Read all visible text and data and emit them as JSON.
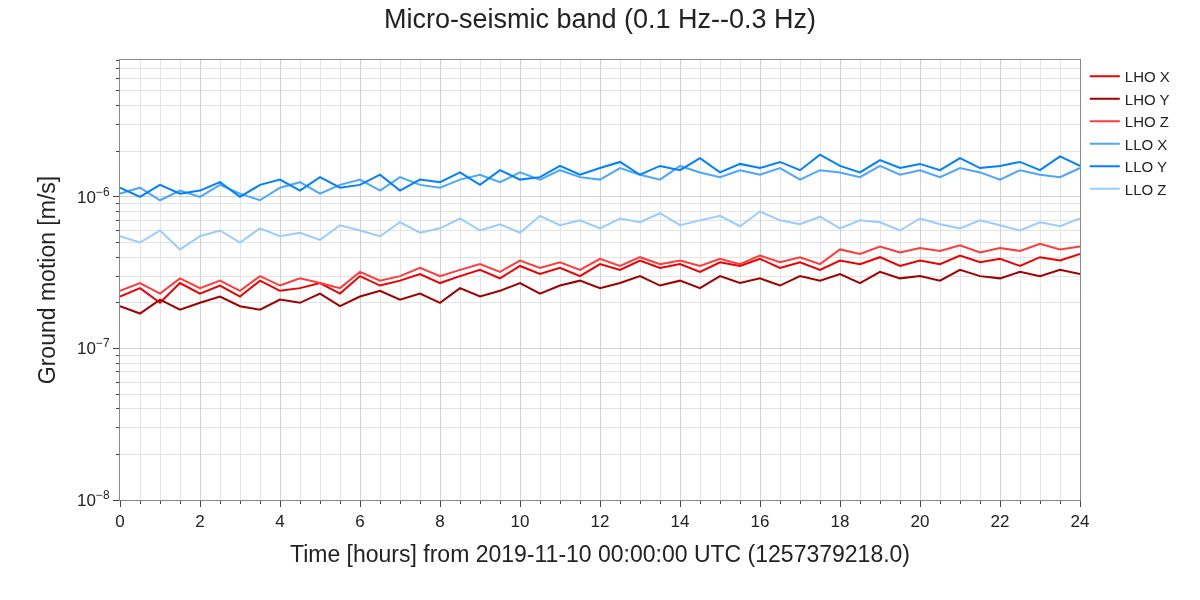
{
  "chart_data": {
    "type": "line",
    "title": "Micro-seismic band (0.1 Hz--0.3 Hz)",
    "xlabel": "Time [hours] from 2019-11-10 00:00:00 UTC (1257379218.0)",
    "ylabel": "Ground motion [m/s]",
    "x": [
      0,
      0.5,
      1,
      1.5,
      2,
      2.5,
      3,
      3.5,
      4,
      4.5,
      5,
      5.5,
      6,
      6.5,
      7,
      7.5,
      8,
      8.5,
      9,
      9.5,
      10,
      10.5,
      11,
      11.5,
      12,
      12.5,
      13,
      13.5,
      14,
      14.5,
      15,
      15.5,
      16,
      16.5,
      17,
      17.5,
      18,
      18.5,
      19,
      19.5,
      20,
      20.5,
      21,
      21.5,
      22,
      22.5,
      23,
      23.5,
      24
    ],
    "series": [
      {
        "name": "LHO X",
        "color": "#ee0000",
        "values": [
          2.2e-07,
          2.5e-07,
          2e-07,
          2.7e-07,
          2.3e-07,
          2.6e-07,
          2.2e-07,
          2.8e-07,
          2.4e-07,
          2.5e-07,
          2.7e-07,
          2.3e-07,
          3e-07,
          2.6e-07,
          2.8e-07,
          3.1e-07,
          2.7e-07,
          3e-07,
          3.3e-07,
          2.9e-07,
          3.5e-07,
          3.1e-07,
          3.4e-07,
          3e-07,
          3.6e-07,
          3.3e-07,
          3.8e-07,
          3.4e-07,
          3.6e-07,
          3.2e-07,
          3.7e-07,
          3.5e-07,
          3.9e-07,
          3.4e-07,
          3.7e-07,
          3.3e-07,
          3.8e-07,
          3.6e-07,
          4e-07,
          3.5e-07,
          3.8e-07,
          3.6e-07,
          4.1e-07,
          3.7e-07,
          3.9e-07,
          3.5e-07,
          4e-07,
          3.8e-07,
          4.2e-07
        ]
      },
      {
        "name": "LHO Y",
        "color": "#a00000",
        "values": [
          1.9e-07,
          1.7e-07,
          2.1e-07,
          1.8e-07,
          2e-07,
          2.2e-07,
          1.9e-07,
          1.8e-07,
          2.1e-07,
          2e-07,
          2.3e-07,
          1.9e-07,
          2.2e-07,
          2.4e-07,
          2.1e-07,
          2.3e-07,
          2e-07,
          2.5e-07,
          2.2e-07,
          2.4e-07,
          2.7e-07,
          2.3e-07,
          2.6e-07,
          2.8e-07,
          2.5e-07,
          2.7e-07,
          3e-07,
          2.6e-07,
          2.8e-07,
          2.5e-07,
          3e-07,
          2.7e-07,
          2.9e-07,
          2.6e-07,
          3e-07,
          2.8e-07,
          3.1e-07,
          2.7e-07,
          3.2e-07,
          2.9e-07,
          3e-07,
          2.8e-07,
          3.3e-07,
          3e-07,
          2.9e-07,
          3.2e-07,
          3e-07,
          3.3e-07,
          3.1e-07
        ]
      },
      {
        "name": "LHO Z",
        "color": "#ff3b3b",
        "values": [
          2.4e-07,
          2.7e-07,
          2.3e-07,
          2.9e-07,
          2.5e-07,
          2.8e-07,
          2.4e-07,
          3e-07,
          2.6e-07,
          2.9e-07,
          2.7e-07,
          2.5e-07,
          3.2e-07,
          2.8e-07,
          3e-07,
          3.4e-07,
          3e-07,
          3.3e-07,
          3.6e-07,
          3.2e-07,
          3.8e-07,
          3.4e-07,
          3.7e-07,
          3.3e-07,
          3.9e-07,
          3.5e-07,
          4e-07,
          3.6e-07,
          3.8e-07,
          3.5e-07,
          3.9e-07,
          3.6e-07,
          4.1e-07,
          3.7e-07,
          4e-07,
          3.6e-07,
          4.5e-07,
          4.2e-07,
          4.7e-07,
          4.3e-07,
          4.6e-07,
          4.4e-07,
          4.8e-07,
          4.3e-07,
          4.6e-07,
          4.4e-07,
          4.9e-07,
          4.5e-07,
          4.7e-07
        ]
      },
      {
        "name": "LLO X",
        "color": "#4ba6ff",
        "values": [
          1.05e-06,
          1.15e-06,
          9.5e-07,
          1.1e-06,
          1e-06,
          1.2e-06,
          1.05e-06,
          9.5e-07,
          1.15e-06,
          1.25e-06,
          1.05e-06,
          1.2e-06,
          1.3e-06,
          1.1e-06,
          1.35e-06,
          1.2e-06,
          1.15e-06,
          1.3e-06,
          1.4e-06,
          1.25e-06,
          1.45e-06,
          1.3e-06,
          1.5e-06,
          1.35e-06,
          1.3e-06,
          1.55e-06,
          1.4e-06,
          1.3e-06,
          1.6e-06,
          1.45e-06,
          1.35e-06,
          1.5e-06,
          1.4e-06,
          1.55e-06,
          1.3e-06,
          1.5e-06,
          1.45e-06,
          1.35e-06,
          1.6e-06,
          1.4e-06,
          1.5e-06,
          1.35e-06,
          1.55e-06,
          1.45e-06,
          1.3e-06,
          1.5e-06,
          1.4e-06,
          1.35e-06,
          1.55e-06
        ]
      },
      {
        "name": "LLO Y",
        "color": "#0080ff",
        "values": [
          1.15e-06,
          1e-06,
          1.2e-06,
          1.05e-06,
          1.1e-06,
          1.25e-06,
          1e-06,
          1.2e-06,
          1.3e-06,
          1.1e-06,
          1.35e-06,
          1.15e-06,
          1.2e-06,
          1.4e-06,
          1.1e-06,
          1.3e-06,
          1.25e-06,
          1.45e-06,
          1.2e-06,
          1.5e-06,
          1.3e-06,
          1.35e-06,
          1.6e-06,
          1.4e-06,
          1.55e-06,
          1.7e-06,
          1.4e-06,
          1.6e-06,
          1.5e-06,
          1.8e-06,
          1.45e-06,
          1.65e-06,
          1.55e-06,
          1.7e-06,
          1.5e-06,
          1.9e-06,
          1.6e-06,
          1.45e-06,
          1.75e-06,
          1.55e-06,
          1.65e-06,
          1.5e-06,
          1.8e-06,
          1.55e-06,
          1.6e-06,
          1.7e-06,
          1.5e-06,
          1.85e-06,
          1.6e-06
        ]
      },
      {
        "name": "LLO Z",
        "color": "#99ccff",
        "values": [
          5.5e-07,
          5e-07,
          6e-07,
          4.5e-07,
          5.5e-07,
          6e-07,
          5e-07,
          6.2e-07,
          5.5e-07,
          5.8e-07,
          5.2e-07,
          6.5e-07,
          6e-07,
          5.5e-07,
          6.8e-07,
          5.8e-07,
          6.2e-07,
          7.2e-07,
          6e-07,
          6.6e-07,
          5.8e-07,
          7.5e-07,
          6.5e-07,
          7e-07,
          6.2e-07,
          7.2e-07,
          6.8e-07,
          7.8e-07,
          6.5e-07,
          7e-07,
          7.5e-07,
          6.4e-07,
          8e-07,
          7e-07,
          6.6e-07,
          7.4e-07,
          6.2e-07,
          7e-07,
          6.8e-07,
          6e-07,
          7.2e-07,
          6.6e-07,
          6.2e-07,
          7e-07,
          6.5e-07,
          6e-07,
          6.8e-07,
          6.4e-07,
          7.2e-07
        ]
      }
    ],
    "xlim": [
      0,
      24
    ],
    "xticks": [
      0,
      2,
      4,
      6,
      8,
      10,
      12,
      14,
      16,
      18,
      20,
      22,
      24
    ],
    "ylim": [
      1e-08,
      8e-06
    ],
    "yticks": [
      {
        "value": 1e-08,
        "label": "10$^{−8}$"
      },
      {
        "value": 1e-07,
        "label": "10$^{−7}$"
      },
      {
        "value": 1e-06,
        "label": "10$^{−6}$"
      }
    ],
    "log": "y",
    "grid": true,
    "legend": "top right",
    "marker": "none",
    "line_style": "solid"
  }
}
